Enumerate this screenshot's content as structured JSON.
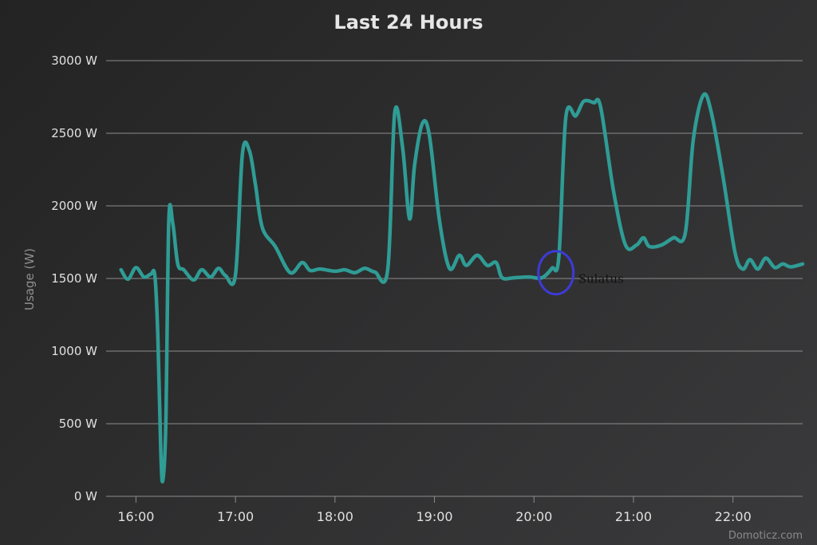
{
  "chart_data": {
    "type": "line",
    "title": "Last 24 Hours",
    "ylabel": "Usage (W)",
    "xlabel": "",
    "ylim": [
      0,
      3000
    ],
    "yticks": [
      0,
      500,
      1000,
      1500,
      2000,
      2500,
      3000
    ],
    "ytick_labels": [
      "0 W",
      "500 W",
      "1000 W",
      "1500 W",
      "2000 W",
      "2500 W",
      "3000 W"
    ],
    "xticks": [
      16,
      17,
      18,
      19,
      20,
      21,
      22
    ],
    "xtick_labels": [
      "16:00",
      "17:00",
      "18:00",
      "19:00",
      "20:00",
      "21:00",
      "22:00"
    ],
    "xlim": [
      15.7,
      22.7
    ],
    "grid": true,
    "series_color": "#2f9c95",
    "series": [
      {
        "values": [
          [
            15.85,
            1560
          ],
          [
            15.92,
            1495
          ],
          [
            16.0,
            1575
          ],
          [
            16.08,
            1510
          ],
          [
            16.15,
            1530
          ],
          [
            16.19,
            1520
          ],
          [
            16.22,
            1100
          ],
          [
            16.25,
            300
          ],
          [
            16.27,
            110
          ],
          [
            16.3,
            500
          ],
          [
            16.33,
            1900
          ],
          [
            16.37,
            1880
          ],
          [
            16.42,
            1600
          ],
          [
            16.48,
            1560
          ],
          [
            16.58,
            1490
          ],
          [
            16.66,
            1560
          ],
          [
            16.75,
            1510
          ],
          [
            16.83,
            1570
          ],
          [
            16.9,
            1520
          ],
          [
            17.0,
            1525
          ],
          [
            17.07,
            2360
          ],
          [
            17.14,
            2380
          ],
          [
            17.2,
            2150
          ],
          [
            17.27,
            1850
          ],
          [
            17.4,
            1720
          ],
          [
            17.55,
            1540
          ],
          [
            17.67,
            1610
          ],
          [
            17.75,
            1555
          ],
          [
            17.85,
            1565
          ],
          [
            18.0,
            1550
          ],
          [
            18.1,
            1560
          ],
          [
            18.2,
            1540
          ],
          [
            18.3,
            1570
          ],
          [
            18.4,
            1545
          ],
          [
            18.53,
            1560
          ],
          [
            18.6,
            2640
          ],
          [
            18.68,
            2400
          ],
          [
            18.75,
            1910
          ],
          [
            18.8,
            2280
          ],
          [
            18.88,
            2570
          ],
          [
            18.95,
            2480
          ],
          [
            19.05,
            1900
          ],
          [
            19.15,
            1570
          ],
          [
            19.25,
            1660
          ],
          [
            19.32,
            1590
          ],
          [
            19.43,
            1660
          ],
          [
            19.53,
            1590
          ],
          [
            19.62,
            1610
          ],
          [
            19.68,
            1505
          ],
          [
            19.8,
            1505
          ],
          [
            19.95,
            1510
          ],
          [
            20.08,
            1505
          ],
          [
            20.18,
            1570
          ],
          [
            20.25,
            1650
          ],
          [
            20.32,
            2610
          ],
          [
            20.42,
            2620
          ],
          [
            20.5,
            2720
          ],
          [
            20.6,
            2710
          ],
          [
            20.67,
            2680
          ],
          [
            20.8,
            2100
          ],
          [
            20.92,
            1730
          ],
          [
            21.03,
            1730
          ],
          [
            21.1,
            1780
          ],
          [
            21.16,
            1720
          ],
          [
            21.28,
            1730
          ],
          [
            21.4,
            1780
          ],
          [
            21.52,
            1810
          ],
          [
            21.6,
            2450
          ],
          [
            21.7,
            2760
          ],
          [
            21.78,
            2650
          ],
          [
            21.9,
            2200
          ],
          [
            22.02,
            1680
          ],
          [
            22.1,
            1565
          ],
          [
            22.17,
            1630
          ],
          [
            22.25,
            1565
          ],
          [
            22.33,
            1640
          ],
          [
            22.42,
            1575
          ],
          [
            22.5,
            1600
          ],
          [
            22.58,
            1580
          ],
          [
            22.7,
            1600
          ]
        ]
      }
    ],
    "annotation": {
      "text": "Sulatus",
      "x": 20.22,
      "y": 1540,
      "circle_color": "#3d3bd6"
    },
    "credit": "Domoticz.com"
  }
}
